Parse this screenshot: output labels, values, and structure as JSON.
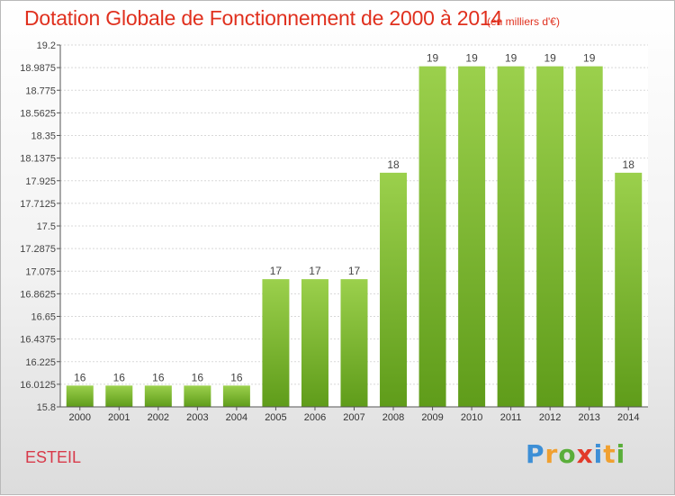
{
  "header": {
    "title": "Dotation Globale de Fonctionnement de 2000 à 2014",
    "subtitle": "(en milliers d'€)"
  },
  "footer": {
    "place": "ESTEIL",
    "logo": "Proxiti"
  },
  "chart_data": {
    "type": "bar",
    "title": "Dotation Globale de Fonctionnement de 2000 à 2014",
    "subtitle": "(en milliers d'€)",
    "xlabel": "",
    "ylabel": "",
    "categories": [
      "2000",
      "2001",
      "2002",
      "2003",
      "2004",
      "2005",
      "2006",
      "2007",
      "2008",
      "2009",
      "2010",
      "2011",
      "2012",
      "2013",
      "2014"
    ],
    "values": [
      16.0,
      16.0,
      16.0,
      16.0,
      16.0,
      17.0,
      17.0,
      17.0,
      18.0,
      19.0,
      19.0,
      19.0,
      19.0,
      19.0,
      18.0
    ],
    "data_labels": [
      "16",
      "16",
      "16",
      "16",
      "16",
      "17",
      "17",
      "17",
      "18",
      "19",
      "19",
      "19",
      "19",
      "19",
      "18"
    ],
    "ylim": [
      15.8,
      19.2
    ],
    "yticks": [
      "15.8",
      "16.0125",
      "16.225",
      "16.4375",
      "16.65",
      "16.8625",
      "17.075",
      "17.2875",
      "17.5",
      "17.7125",
      "17.925",
      "18.1375",
      "18.35",
      "18.5625",
      "18.775",
      "18.9875",
      "19.2"
    ],
    "grid": true,
    "bar_color": "#7cbb2e"
  }
}
